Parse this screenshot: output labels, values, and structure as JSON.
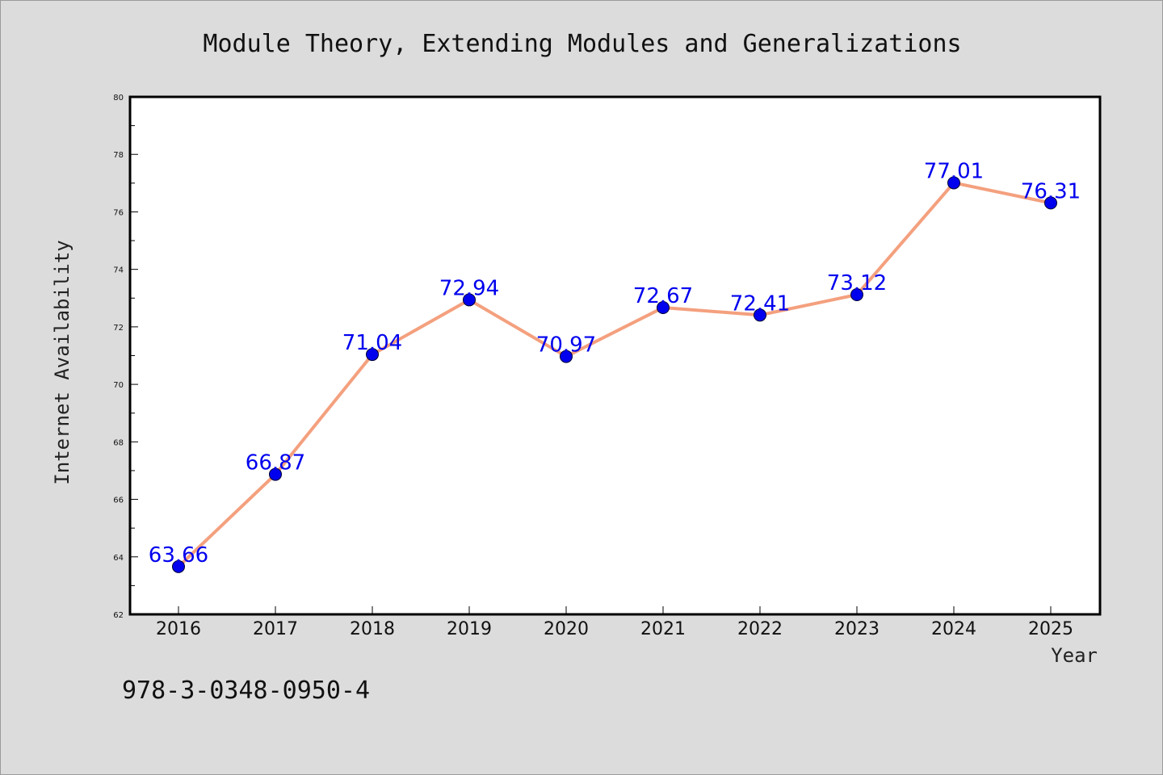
{
  "colors": {
    "background": "#dcdcdc",
    "plot_background": "#ffffff",
    "line": "#f4a07e",
    "marker": "#0000ee",
    "data_label": "#0000ee"
  },
  "footnote": "978-3-0348-0950-4",
  "chart_data": {
    "type": "line",
    "title": "Module Theory, Extending Modules and Generalizations",
    "xlabel": "Year",
    "ylabel": "Internet Availability",
    "categories": [
      "2016",
      "2017",
      "2018",
      "2019",
      "2020",
      "2021",
      "2022",
      "2023",
      "2024",
      "2025"
    ],
    "series": [
      {
        "values": [
          63.66,
          66.87,
          71.04,
          72.94,
          70.97,
          72.67,
          72.41,
          73.12,
          77.01,
          76.31
        ],
        "labels": [
          "63.66",
          "66.87",
          "71.04",
          "72.94",
          "70.97",
          "72.67",
          "72.41",
          "73.12",
          "77.01",
          "76.31"
        ]
      }
    ],
    "ylim": [
      62,
      80
    ],
    "yticks": [
      "62",
      "64",
      "66",
      "68",
      "70",
      "72",
      "74",
      "76",
      "78",
      "80"
    ],
    "grid": false,
    "legend": "none"
  }
}
